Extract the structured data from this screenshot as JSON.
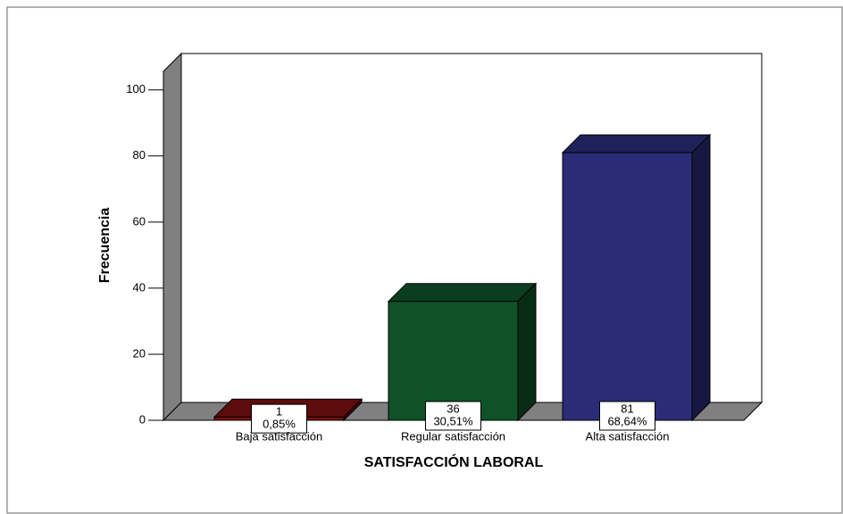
{
  "chart_data": {
    "type": "bar3d",
    "x_label": "SATISFACCIÓN LABORAL",
    "y_label": "Frecuencia",
    "categories": [
      "Baja satisfacción",
      "Regular satisfacción",
      "Alta satisfacción"
    ],
    "values": [
      1,
      36,
      81
    ],
    "percent_labels": [
      "0,85%",
      "30,51%",
      "68,64%"
    ],
    "colors": [
      "#7a1010",
      "#0f5228",
      "#2a2c78"
    ],
    "ylim": [
      0,
      111
    ],
    "yticks": [
      0,
      20,
      40,
      60,
      80,
      100
    ]
  }
}
